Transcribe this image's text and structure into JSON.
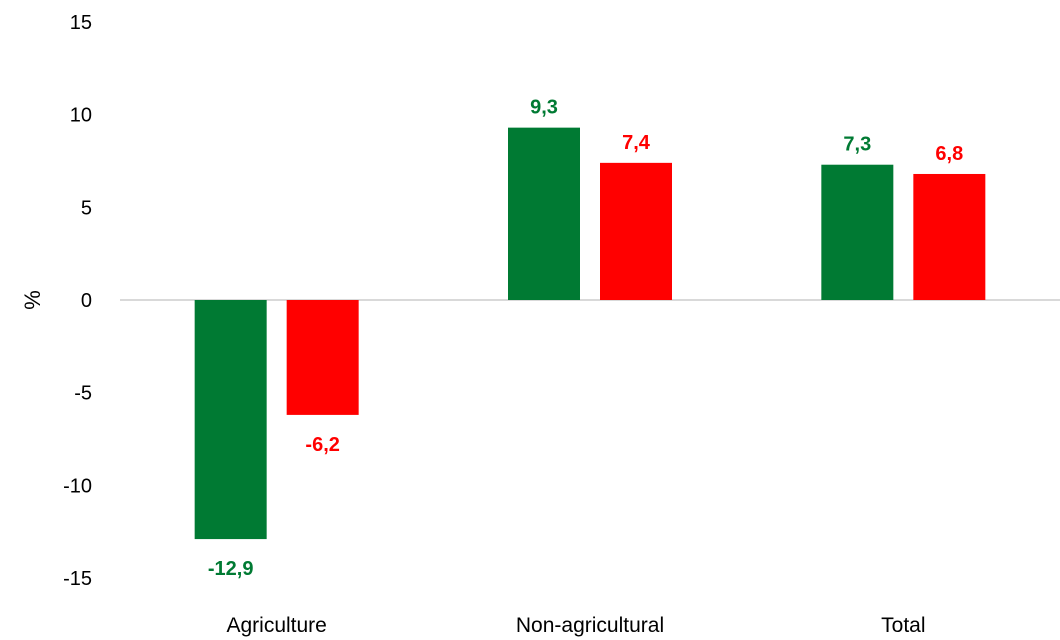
{
  "chart_data": {
    "type": "bar",
    "title": "",
    "xlabel": "",
    "ylabel": "%",
    "ylim": [
      -15,
      15
    ],
    "yticks": [
      15,
      10,
      5,
      0,
      -5,
      -10,
      -15
    ],
    "grid": false,
    "legend": "none",
    "categories": [
      "Agriculture",
      "Non-agricultural",
      "Total"
    ],
    "series": [
      {
        "color": "#007a33",
        "values": [
          -12.9,
          9.3,
          7.3
        ],
        "labels": [
          "-12,9",
          "9,3",
          "7,3"
        ]
      },
      {
        "color": "#ff0000",
        "values": [
          -6.2,
          7.4,
          6.8
        ],
        "labels": [
          "-6,2",
          "7,4",
          "6,8"
        ]
      }
    ]
  }
}
